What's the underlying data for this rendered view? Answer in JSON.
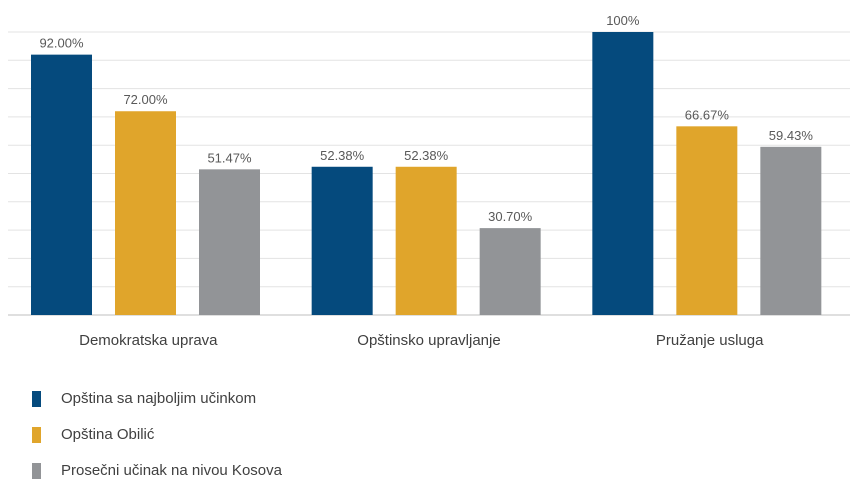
{
  "chart_data": {
    "type": "bar",
    "categories": [
      "Demokratska uprava",
      "Opštinsko upravljanje",
      "Pružanje usluga"
    ],
    "series": [
      {
        "name": "Opština sa najboljim učinkom",
        "values": [
          92.0,
          52.38,
          100
        ],
        "labels": [
          "92.00%",
          "52.38%",
          "100%"
        ],
        "color": "#054a7d"
      },
      {
        "name": "Opština Obilić",
        "values": [
          72.0,
          52.38,
          66.67
        ],
        "labels": [
          "72.00%",
          "52.38%",
          "66.67%"
        ],
        "color": "#e0a52b"
      },
      {
        "name": "Prosečni učinak na nivou Kosova",
        "values": [
          51.47,
          30.7,
          59.43
        ],
        "labels": [
          "51.47%",
          "30.70%",
          "59.43%"
        ],
        "color": "#929497"
      }
    ],
    "ylim": [
      0,
      100
    ],
    "grid": true,
    "legend_position": "bottom-left",
    "title": "",
    "xlabel": "",
    "ylabel": ""
  }
}
